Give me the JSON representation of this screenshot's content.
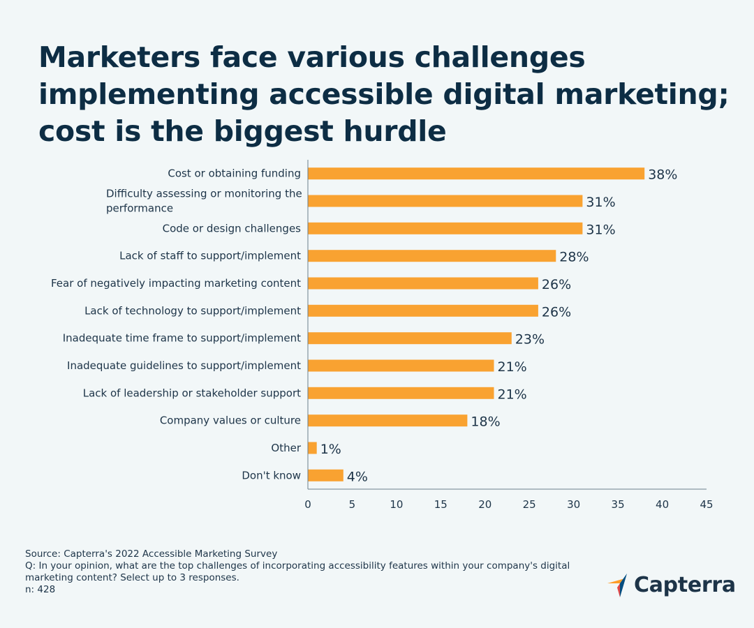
{
  "title_lines": [
    "Marketers face various challenges",
    "implementing accessible digital marketing;",
    "cost is the biggest hurdle"
  ],
  "chart_data": {
    "type": "bar",
    "orientation": "horizontal",
    "categories": [
      [
        "Cost or obtaining funding"
      ],
      [
        "Difficulty assessing or monitoring the",
        "performance"
      ],
      [
        "Code or design challenges"
      ],
      [
        "Lack of staff to support/implement"
      ],
      [
        "Fear of negatively impacting marketing content"
      ],
      [
        "Lack of technology to support/implement"
      ],
      [
        "Inadequate time frame to support/implement"
      ],
      [
        "Inadequate guidelines to support/implement"
      ],
      [
        "Lack of leadership or stakeholder support"
      ],
      [
        "Company values or culture"
      ],
      [
        "Other"
      ],
      [
        "Don't know"
      ]
    ],
    "values": [
      38,
      31,
      31,
      28,
      26,
      26,
      23,
      21,
      21,
      18,
      1,
      4
    ],
    "value_labels": [
      "38%",
      "31%",
      "31%",
      "28%",
      "26%",
      "26%",
      "23%",
      "21%",
      "21%",
      "18%",
      "1%",
      "4%"
    ],
    "xlim": [
      0,
      45
    ],
    "xticks": [
      0,
      5,
      10,
      15,
      20,
      25,
      30,
      35,
      40,
      45
    ],
    "bar_color": "#f9a231",
    "grid": false,
    "legend": "none"
  },
  "source": {
    "line1": "Source: Capterra's 2022 Accessible Marketing Survey",
    "line2": "Q: In your opinion, what are the top challenges of incorporating accessibility features within your company's digital",
    "line3": "marketing content? Select up to 3 responses.",
    "line4": "n: 428"
  },
  "logo": {
    "text": "Capterra",
    "colors": [
      "#ff9d28",
      "#68c5ed",
      "#044d80",
      "#e54747"
    ]
  }
}
